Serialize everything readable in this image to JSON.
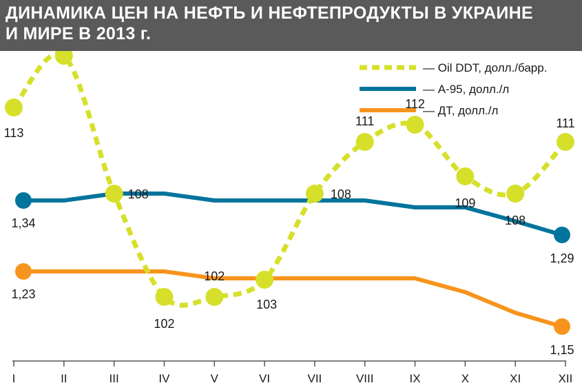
{
  "title": {
    "line1": "ДИНАМИКА ЦЕН НА НЕФТЬ И НЕФТЕПРОДУКТЫ В УКРАИНЕ",
    "line2": "И МИРЕ В 2013 г."
  },
  "colors": {
    "title_bg": "#5a5a5a",
    "oil": "#d6e02a",
    "a95": "#00749c",
    "dt": "#f7941d"
  },
  "chart_data": {
    "type": "line",
    "categories": [
      "I",
      "II",
      "III",
      "IV",
      "V",
      "VI",
      "VII",
      "VIII",
      "IX",
      "X",
      "XI",
      "XII"
    ],
    "grid": false,
    "legend_position": "top-right",
    "series": [
      {
        "key": "oil",
        "name": "— Oil DDT, долл./барр.",
        "style": "dotted-smooth",
        "values": [
          113,
          116,
          108,
          102,
          102,
          103,
          108,
          111,
          112,
          109,
          108,
          111
        ],
        "labels": [
          "113",
          "116",
          "108",
          "102",
          "102",
          "103",
          "108",
          "111",
          "112",
          "109",
          "108",
          "111"
        ]
      },
      {
        "key": "a95",
        "name": "— А-95, долл./л",
        "style": "solid",
        "values": [
          1.34,
          1.34,
          1.35,
          1.35,
          1.34,
          1.34,
          1.34,
          1.34,
          1.33,
          1.33,
          1.31,
          1.29
        ],
        "endpoint_labels": [
          "1,34",
          "1,29"
        ]
      },
      {
        "key": "dt",
        "name": "— ДТ, долл./л",
        "style": "solid",
        "values": [
          1.23,
          1.23,
          1.23,
          1.23,
          1.22,
          1.22,
          1.22,
          1.22,
          1.22,
          1.2,
          1.17,
          1.15
        ],
        "endpoint_labels": [
          "1,23",
          "1,15"
        ]
      }
    ]
  }
}
